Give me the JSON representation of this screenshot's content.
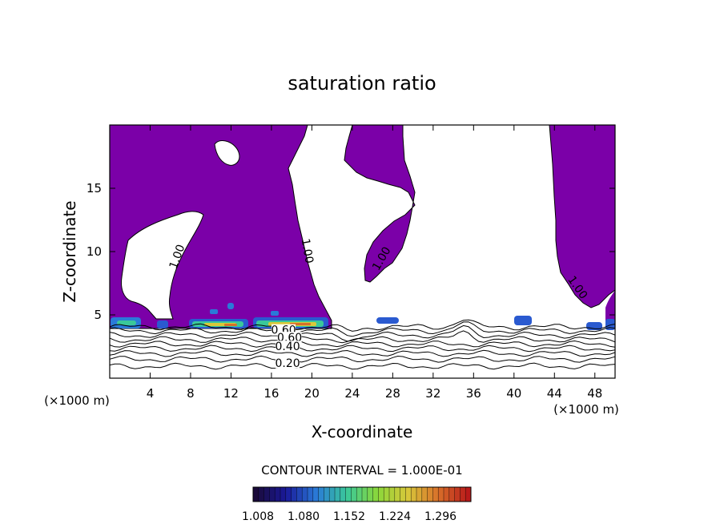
{
  "chart_data": {
    "type": "heatmap",
    "title": "saturation ratio",
    "xlabel": "X-coordinate",
    "ylabel": "Z-coordinate",
    "x_unit_left": "(×1000 m)",
    "x_unit_right": "(×1000 m)",
    "xlim": [
      0,
      50
    ],
    "ylim": [
      0,
      20
    ],
    "x_ticks": [
      4,
      8,
      12,
      16,
      20,
      24,
      28,
      32,
      36,
      40,
      44,
      48
    ],
    "y_ticks": [
      5,
      10,
      15
    ],
    "contour_interval_text": "CONTOUR INTERVAL = 1.000E-01",
    "contour_labels": [
      {
        "text": "1.00",
        "x": 7.0,
        "z": 9.5,
        "angle": -70
      },
      {
        "text": "1.00",
        "x": 19.2,
        "z": 10.0,
        "angle": 80
      },
      {
        "text": "1.00",
        "x": 27.2,
        "z": 9.3,
        "angle": -60
      },
      {
        "text": "1.00",
        "x": 46.0,
        "z": 7.0,
        "angle": 55
      },
      {
        "text": "0.60",
        "x": 17.2,
        "z": 3.5,
        "angle": 0
      },
      {
        "text": "0.60",
        "x": 17.8,
        "z": 2.9,
        "angle": 0
      },
      {
        "text": "0.40",
        "x": 17.6,
        "z": 2.2,
        "angle": 0
      },
      {
        "text": "0.20",
        "x": 17.6,
        "z": 0.9,
        "angle": 0
      }
    ],
    "colorbar": {
      "ticks": [
        "1.008",
        "1.080",
        "1.152",
        "1.224",
        "1.296"
      ],
      "colors": [
        "#1a0a3a",
        "#1a1a9a",
        "#2a7ad8",
        "#3ac89a",
        "#8ad83a",
        "#d8c83a",
        "#d8702a",
        "#b81a1a"
      ]
    },
    "colors": {
      "saturated_fill": "#7b00a8",
      "background": "#ffffff"
    }
  }
}
